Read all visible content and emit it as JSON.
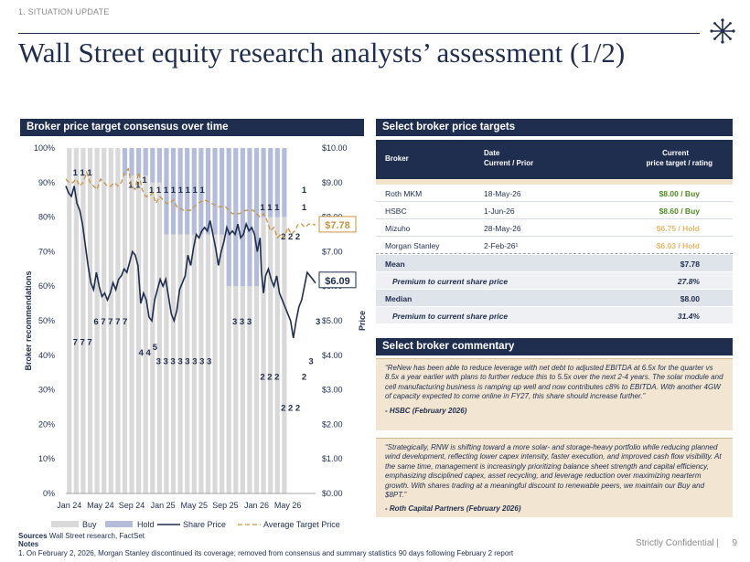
{
  "header": {
    "section_label": "1. SITUATION UPDATE",
    "title": "Wall Street equity research analysts’ assessment (1/2)"
  },
  "colors": {
    "navy": "#1f2d4e",
    "buy": "#d9d9d9",
    "hold": "#b4bcd9",
    "target": "#c9933f",
    "highlight_hold": "#e6b86a",
    "comment_bg": "#f2e6d3"
  },
  "chart_panel": {
    "title": "Broker price target consensus over time"
  },
  "chart_data": {
    "type": "bar",
    "x_axis_labels": [
      "Jan 24",
      "May 24",
      "Sep 24",
      "Jan 25",
      "May 25",
      "Sep 25",
      "Jan 26",
      "May 26"
    ],
    "left_axis": {
      "label": "Broker recommendations",
      "ticks": [
        "0%",
        "10%",
        "20%",
        "30%",
        "40%",
        "50%",
        "60%",
        "70%",
        "80%",
        "90%",
        "100%"
      ],
      "range": [
        0,
        100
      ]
    },
    "right_axis": {
      "label": "Price",
      "ticks": [
        "$0.00",
        "$1.00",
        "$2.00",
        "$3.00",
        "$4.00",
        "$5.00",
        "$6.00",
        "$7.00",
        "$8.00",
        "$9.00",
        "$10.00"
      ],
      "range": [
        0,
        10
      ]
    },
    "legend": [
      "Buy",
      "Hold",
      "Share Price",
      "Average Target Price"
    ],
    "buy_pct_segments": [
      {
        "months": 4,
        "buy_pct": 100
      },
      {
        "months": 4,
        "buy_pct": 100
      },
      {
        "months": 4,
        "buy_pct": 92
      },
      {
        "months": 2,
        "buy_pct": 90
      },
      {
        "months": 9,
        "buy_pct": 75
      },
      {
        "months": 3,
        "buy_pct": 60
      },
      {
        "months": 2,
        "buy_pct": 60
      },
      {
        "months": 4,
        "buy_pct": 80
      }
    ],
    "buy_count_labels": [
      {
        "x": 1,
        "pct": 43,
        "text": "7 7 7"
      },
      {
        "x": 4,
        "pct": 49,
        "text": "6 7 7 7 7"
      },
      {
        "x": 10.5,
        "pct": 40,
        "text": "4 4"
      },
      {
        "x": 12.5,
        "pct": 41.5,
        "text": "5"
      },
      {
        "x": 13,
        "pct": 37.5,
        "text": "3 3 3 3 3 3 3 3"
      },
      {
        "x": 24,
        "pct": 49,
        "text": "3 3 3"
      },
      {
        "x": 28,
        "pct": 33,
        "text": "2 2 2"
      },
      {
        "x": 31,
        "pct": 24,
        "text": "2 2 2"
      },
      {
        "x": 34,
        "pct": 33,
        "text": "2"
      },
      {
        "x": 35,
        "pct": 37.5,
        "text": "3"
      },
      {
        "x": 36,
        "pct": 49,
        "text": "3"
      }
    ],
    "hold_count_labels": [
      {
        "x": 1,
        "pct": 92,
        "text": "1 1 1"
      },
      {
        "x": 9,
        "pct": 88.5,
        "text": "1 1"
      },
      {
        "x": 11,
        "pct": 90,
        "text": "1"
      },
      {
        "x": 12,
        "pct": 87,
        "text": "1 1 1 1 1 1 1 1"
      },
      {
        "x": 28,
        "pct": 82,
        "text": "1 1 1"
      },
      {
        "x": 34,
        "pct": 82,
        "text": "1"
      },
      {
        "x": 34,
        "pct": 87,
        "text": "1"
      },
      {
        "x": 31,
        "pct": 73.5,
        "text": "2 2 2"
      }
    ],
    "share_price": [
      [
        0,
        8.9
      ],
      [
        0.4,
        8.7
      ],
      [
        0.8,
        8.6
      ],
      [
        1.2,
        8.9
      ],
      [
        1.6,
        8.4
      ],
      [
        2,
        8.2
      ],
      [
        2.4,
        7.8
      ],
      [
        2.8,
        7.2
      ],
      [
        3.2,
        6.6
      ],
      [
        3.6,
        6.1
      ],
      [
        4,
        5.9
      ],
      [
        4.4,
        6.4
      ],
      [
        4.8,
        6.0
      ],
      [
        5.2,
        5.7
      ],
      [
        5.6,
        5.8
      ],
      [
        6,
        5.6
      ],
      [
        6.4,
        5.8
      ],
      [
        6.8,
        6.1
      ],
      [
        7.2,
        5.9
      ],
      [
        7.6,
        6.2
      ],
      [
        8,
        6.3
      ],
      [
        8.4,
        6.5
      ],
      [
        8.8,
        6.4
      ],
      [
        9.2,
        6.7
      ],
      [
        9.6,
        7.0
      ],
      [
        10,
        6.9
      ],
      [
        10.4,
        6.6
      ],
      [
        10.8,
        5.5
      ],
      [
        11.2,
        5.8
      ],
      [
        11.6,
        5.6
      ],
      [
        12,
        5.1
      ],
      [
        12.4,
        5.0
      ],
      [
        12.8,
        5.6
      ],
      [
        13.2,
        5.9
      ],
      [
        13.6,
        6.2
      ],
      [
        14,
        6.0
      ],
      [
        14.4,
        6.2
      ],
      [
        14.8,
        5.7
      ],
      [
        15.2,
        5.2
      ],
      [
        15.6,
        5.0
      ],
      [
        16,
        5.3
      ],
      [
        16.4,
        5.9
      ],
      [
        16.8,
        6.1
      ],
      [
        17.2,
        6.3
      ],
      [
        17.6,
        6.9
      ],
      [
        18,
        6.6
      ],
      [
        18.4,
        7.1
      ],
      [
        18.8,
        7.5
      ],
      [
        19.2,
        7.4
      ],
      [
        19.6,
        7.6
      ],
      [
        20,
        7.7
      ],
      [
        20.4,
        7.6
      ],
      [
        20.8,
        7.9
      ],
      [
        21.2,
        7.5
      ],
      [
        21.6,
        7.1
      ],
      [
        22,
        6.6
      ],
      [
        22.4,
        7.0
      ],
      [
        22.8,
        7.3
      ],
      [
        23.2,
        7.7
      ],
      [
        23.6,
        7.5
      ],
      [
        24,
        7.6
      ],
      [
        24.4,
        7.5
      ],
      [
        24.8,
        7.8
      ],
      [
        25.2,
        7.4
      ],
      [
        25.6,
        7.5
      ],
      [
        26,
        7.8
      ],
      [
        26.4,
        7.6
      ],
      [
        26.8,
        7.7
      ],
      [
        27.2,
        7.5
      ],
      [
        27.6,
        7.0
      ],
      [
        28,
        7.4
      ],
      [
        28.2,
        6.4
      ],
      [
        28.5,
        5.8
      ],
      [
        28.8,
        6.3
      ],
      [
        29.2,
        6.5
      ],
      [
        29.6,
        6.2
      ],
      [
        30,
        6.0
      ],
      [
        30.4,
        6.3
      ],
      [
        30.8,
        5.8
      ],
      [
        31.2,
        5.6
      ],
      [
        31.6,
        5.4
      ],
      [
        32,
        5.2
      ],
      [
        32.4,
        5.0
      ],
      [
        32.8,
        4.5
      ],
      [
        33.2,
        5.0
      ],
      [
        33.6,
        5.4
      ],
      [
        34,
        5.6
      ],
      [
        34.4,
        6.0
      ],
      [
        34.8,
        6.4
      ],
      [
        35.2,
        6.3
      ],
      [
        35.6,
        6.2
      ],
      [
        36,
        6.09
      ]
    ],
    "avg_target": [
      [
        0,
        9.1
      ],
      [
        0.5,
        9.0
      ],
      [
        1,
        9.0
      ],
      [
        1.5,
        9.1
      ],
      [
        2,
        8.9
      ],
      [
        2.5,
        9.0
      ],
      [
        3,
        9.3
      ],
      [
        3.5,
        9.0
      ],
      [
        4,
        8.9
      ],
      [
        4.5,
        8.8
      ],
      [
        5,
        9.1
      ],
      [
        5.5,
        9.0
      ],
      [
        6,
        8.9
      ],
      [
        6.5,
        8.9
      ],
      [
        7,
        9.0
      ],
      [
        7.5,
        8.9
      ],
      [
        8,
        9.0
      ],
      [
        8.5,
        9.3
      ],
      [
        9,
        9.4
      ],
      [
        9.5,
        8.9
      ],
      [
        10,
        8.8
      ],
      [
        10.5,
        9.3
      ],
      [
        11,
        8.8
      ],
      [
        11.5,
        8.6
      ],
      [
        12,
        8.6
      ],
      [
        12.5,
        8.7
      ],
      [
        13,
        8.4
      ],
      [
        13.5,
        8.6
      ],
      [
        14,
        8.5
      ],
      [
        14.5,
        8.4
      ],
      [
        15,
        8.4
      ],
      [
        15.5,
        8.5
      ],
      [
        16,
        8.3
      ],
      [
        17,
        8.2
      ],
      [
        18,
        8.2
      ],
      [
        19,
        8.4
      ],
      [
        20,
        8.5
      ],
      [
        21,
        8.4
      ],
      [
        22,
        8.3
      ],
      [
        23,
        8.3
      ],
      [
        24,
        8.1
      ],
      [
        25,
        8.1
      ],
      [
        26,
        8.2
      ],
      [
        27,
        8.2
      ],
      [
        27.5,
        8.1
      ],
      [
        28,
        8.0
      ],
      [
        28.5,
        8.1
      ],
      [
        29,
        7.9
      ],
      [
        29.5,
        7.6
      ],
      [
        30,
        7.7
      ],
      [
        30.5,
        7.4
      ],
      [
        31,
        7.5
      ],
      [
        31.5,
        7.4
      ],
      [
        32,
        7.7
      ],
      [
        32.5,
        7.5
      ],
      [
        33,
        7.6
      ],
      [
        33.5,
        7.8
      ],
      [
        34,
        7.8
      ],
      [
        34.5,
        7.7
      ],
      [
        35,
        7.8
      ],
      [
        36,
        7.78
      ]
    ],
    "callouts": [
      {
        "label": "$7.78",
        "value": 7.78,
        "series": "Average Target Price"
      },
      {
        "label": "$6.09",
        "value": 6.09,
        "series": "Share Price"
      }
    ]
  },
  "table": {
    "title": "Select broker price targets",
    "headers": {
      "broker": "Broker",
      "date_line1": "Date",
      "date_line2": "Current / Prior",
      "target_line1": "Current",
      "target_line2": "price target / rating"
    },
    "rows": [
      {
        "broker": "Roth MKM",
        "date": "18-May-26",
        "target": "$8.00 / Buy",
        "color": "#4f8a23"
      },
      {
        "broker": "HSBC",
        "date": "1-Jun-26",
        "target": "$8.60 / Buy",
        "color": "#4f8a23"
      },
      {
        "broker": "Mizuho",
        "date": "28-May-26",
        "target": "$6.75 / Hold",
        "color": "#e6b86a"
      },
      {
        "broker": "Morgan Stanley",
        "date": "2-Feb-26¹",
        "target": "$6.03 / Hold",
        "color": "#e6b86a"
      }
    ],
    "summary": {
      "mean_label": "Mean",
      "mean_value": "$7.78",
      "premium_label_1": "Premium to current share price",
      "premium_value_1": "27.8%",
      "median_label": "Median",
      "median_value": "$8.00",
      "premium_label_2": "Premium to current share price",
      "premium_value_2": "31.4%"
    }
  },
  "commentary": {
    "title": "Select broker commentary",
    "items": [
      {
        "quote": "“ReNew has been able to reduce leverage with net debt to adjusted EBITDA at 6.5x for the quarter vs 8.5x a year earlier with plans to further reduce this to 5.5x over the next 2-4 years. The solar module and cell manufacturing business is ramping up well and now contributes c8% to EBITDA. With another 4GW of capacity expected to come online in FY27, this share should increase further.”",
        "source": "- HSBC (February 2026)"
      },
      {
        "quote": "“Strategically, RNW is shifting toward a more solar- and storage-heavy portfolio while reducing planned wind development, reflecting lower capex intensity, faster execution, and improved cash flow visibility. At the same time, management is increasingly prioritizing balance sheet strength and capital efficiency, emphasizing disciplined capex, asset recycling, and leverage reduction over maximizing nearterm growth. With shares trading at a meaningful discount to renewable peers, we maintain our Buy and $8PT.”",
        "source": "- Roth Capital Partners (February 2026)"
      }
    ]
  },
  "footer": {
    "sources_label": "Sources",
    "sources_text": " Wall Street research, FactSet",
    "notes_label": "Notes",
    "footnote": "1.    On February 2, 2026, Morgan Stanley discontinued its coverage; removed from consensus and summary statistics 90 days following February 2 report",
    "confidential": "Strictly Confidential |",
    "page": "9"
  }
}
